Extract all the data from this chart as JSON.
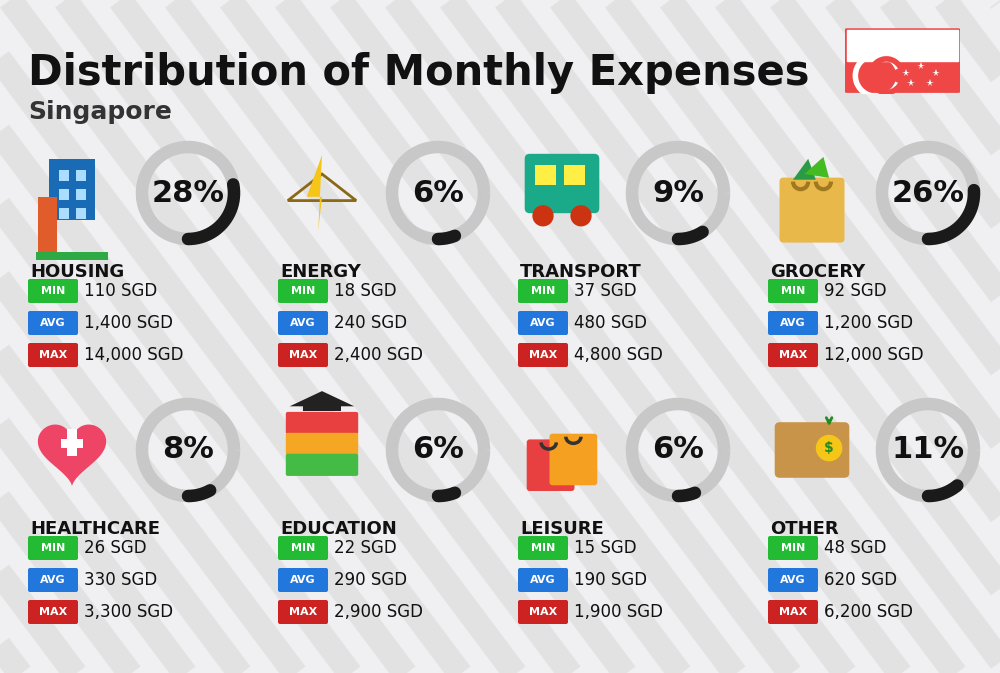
{
  "title": "Distribution of Monthly Expenses",
  "subtitle": "Singapore",
  "bg_color": "#f0f0f2",
  "categories": [
    {
      "name": "HOUSING",
      "pct": 28,
      "min": "110 SGD",
      "avg": "1,400 SGD",
      "max": "14,000 SGD",
      "row": 0,
      "col": 0
    },
    {
      "name": "ENERGY",
      "pct": 6,
      "min": "18 SGD",
      "avg": "240 SGD",
      "max": "2,400 SGD",
      "row": 0,
      "col": 1
    },
    {
      "name": "TRANSPORT",
      "pct": 9,
      "min": "37 SGD",
      "avg": "480 SGD",
      "max": "4,800 SGD",
      "row": 0,
      "col": 2
    },
    {
      "name": "GROCERY",
      "pct": 26,
      "min": "92 SGD",
      "avg": "1,200 SGD",
      "max": "12,000 SGD",
      "row": 0,
      "col": 3
    },
    {
      "name": "HEALTHCARE",
      "pct": 8,
      "min": "26 SGD",
      "avg": "330 SGD",
      "max": "3,300 SGD",
      "row": 1,
      "col": 0
    },
    {
      "name": "EDUCATION",
      "pct": 6,
      "min": "22 SGD",
      "avg": "290 SGD",
      "max": "2,900 SGD",
      "row": 1,
      "col": 1
    },
    {
      "name": "LEISURE",
      "pct": 6,
      "min": "15 SGD",
      "avg": "190 SGD",
      "max": "1,900 SGD",
      "row": 1,
      "col": 2
    },
    {
      "name": "OTHER",
      "pct": 11,
      "min": "48 SGD",
      "avg": "620 SGD",
      "max": "6,200 SGD",
      "row": 1,
      "col": 3
    }
  ],
  "min_color": "#22bb33",
  "avg_color": "#2277dd",
  "max_color": "#cc2222",
  "arc_dark": "#1a1a1a",
  "arc_light": "#c8c8c8",
  "title_fs": 30,
  "subtitle_fs": 18,
  "cat_fs": 13,
  "pct_fs": 22,
  "val_fs": 12,
  "badge_fs": 8,
  "flag_color": "#ef4646",
  "stripe_color": "#d8d8d8",
  "stripe_alpha": 0.55
}
